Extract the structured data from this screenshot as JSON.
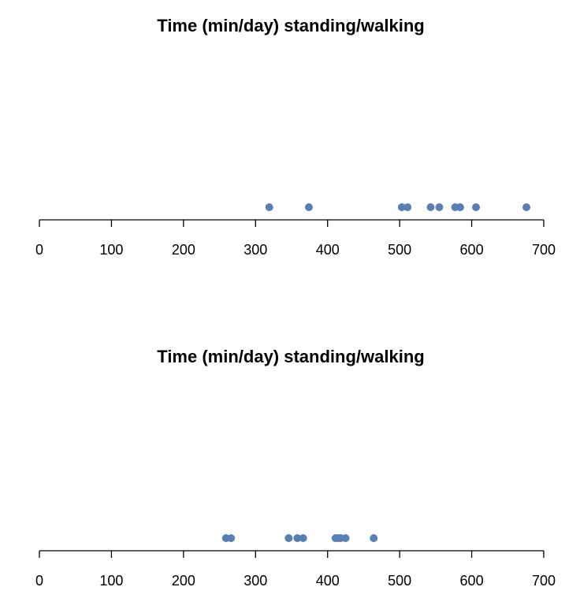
{
  "chart_data": [
    {
      "type": "scatter",
      "title": "Time (min/day) standing/walking",
      "xlabel": "",
      "ylabel": "",
      "xlim": [
        0,
        700
      ],
      "x_ticks": [
        0,
        100,
        200,
        300,
        400,
        500,
        600,
        700
      ],
      "x_tick_labels": [
        "0",
        "100",
        "200",
        "300",
        "400",
        "500",
        "600",
        "700"
      ],
      "grid": false,
      "point_color": "#5a7fb1",
      "series": [
        {
          "values": [
            319,
            374,
            503,
            511,
            543,
            555,
            577,
            584,
            606,
            676
          ]
        }
      ]
    },
    {
      "type": "scatter",
      "title": "Time (min/day) standing/walking",
      "xlabel": "",
      "ylabel": "",
      "xlim": [
        0,
        700
      ],
      "x_ticks": [
        0,
        100,
        200,
        300,
        400,
        500,
        600,
        700
      ],
      "x_tick_labels": [
        "0",
        "100",
        "200",
        "300",
        "400",
        "500",
        "600",
        "700"
      ],
      "grid": false,
      "point_color": "#5a7fb1",
      "series": [
        {
          "values": [
            259,
            266,
            346,
            358,
            366,
            411,
            415,
            418,
            425,
            464
          ]
        }
      ]
    }
  ]
}
